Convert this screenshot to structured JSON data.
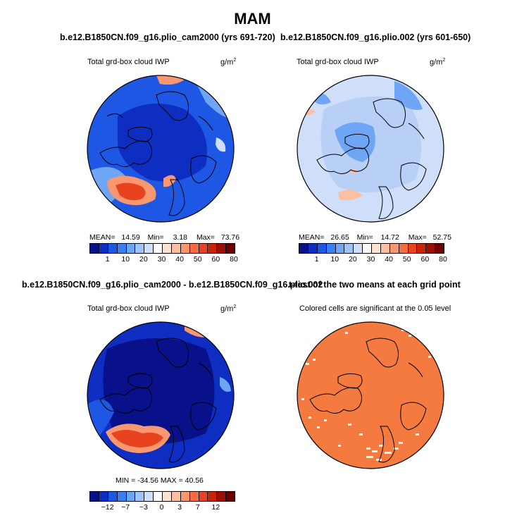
{
  "figure_title": "MAM",
  "panels": {
    "top_left": {
      "case_title": "b.e12.B1850CN.f09_g16.plio_cam2000 (yrs 691-720)",
      "variable_label": "Total grd-box cloud IWP",
      "units_base": "g/m",
      "units_exp": "2",
      "stats": {
        "mean_label": "MEAN=",
        "mean": "14.59",
        "min_label": "Min=",
        "min": "3.18",
        "max_label": "Max=",
        "max": "73.76"
      }
    },
    "top_right": {
      "case_title": "b.e12.B1850CN.f09_g16.plio.002 (yrs 601-650)",
      "variable_label": "Total grd-box cloud IWP",
      "units_base": "g/m",
      "units_exp": "2",
      "stats": {
        "mean_label": "MEAN=",
        "mean": "26.65",
        "min_label": "Min=",
        "min": "14.72",
        "max_label": "Max=",
        "max": "52.75"
      }
    },
    "bottom_left": {
      "case_title": "b.e12.B1850CN.f09_g16.plio_cam2000 - b.e12.B1850CN.f09_g16.plio.002",
      "variable_label": "Total grd-box cloud IWP",
      "units_base": "g/m",
      "units_exp": "2",
      "stats_line": "MIN = -34.56  MAX =   40.56"
    },
    "bottom_right": {
      "case_title": "t-test of the two means at each grid point",
      "variable_label": "Colored cells are significant at the 0.05 level"
    }
  },
  "colorbars": {
    "abs_labels": [
      "1",
      "10",
      "20",
      "30",
      "40",
      "50",
      "60",
      "80"
    ],
    "diff_labels": [
      "−12",
      "−7",
      "−3",
      "0",
      "3",
      "7",
      "12"
    ],
    "colors": [
      "#08108a",
      "#0e2ec2",
      "#1f57e5",
      "#3a80f2",
      "#6ea6f5",
      "#9ec3f7",
      "#cfdff9",
      "#ffffff",
      "#fde2d2",
      "#fcbfa2",
      "#f99870",
      "#f46d44",
      "#e8431f",
      "#c9250d",
      "#9b1006",
      "#6b0000"
    ]
  },
  "map_colors": {
    "ocean_light": "#cfdff9",
    "mid_blue": "#6ea6f5",
    "deep_blue": "#1f57e5",
    "navy": "#0e2ec2",
    "dark_navy": "#08108a",
    "red": "#e8431f",
    "light_red": "#f99870",
    "significance_orange": "#f47a3f"
  }
}
